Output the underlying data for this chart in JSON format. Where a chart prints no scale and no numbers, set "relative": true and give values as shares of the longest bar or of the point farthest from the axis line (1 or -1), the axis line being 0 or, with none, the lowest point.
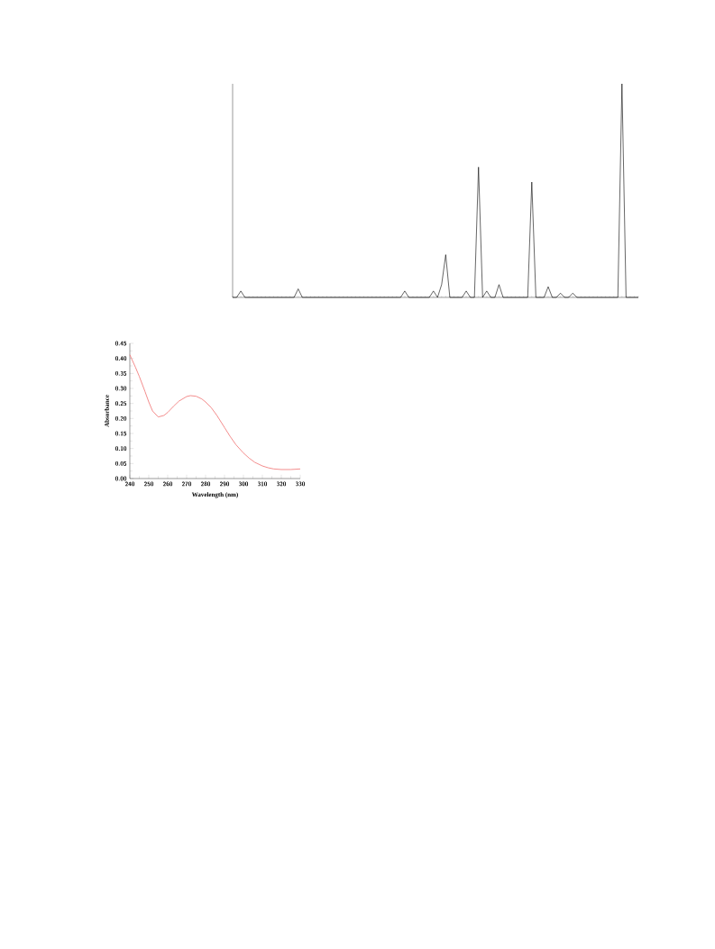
{
  "chart_data": [
    {
      "type": "line",
      "relative": true,
      "color": "#000000",
      "categories": [
        null,
        null,
        null,
        null,
        null,
        null,
        null,
        null,
        null,
        null,
        null,
        null,
        null,
        null,
        null,
        null,
        null,
        null,
        null,
        null,
        null,
        null,
        null,
        null,
        null,
        null,
        null,
        null,
        null,
        null,
        null,
        null,
        null,
        null,
        null,
        null,
        null,
        null,
        null,
        null,
        null,
        null,
        null,
        null,
        null,
        null,
        null,
        null,
        null,
        null,
        null,
        null,
        null,
        null,
        null,
        null,
        null,
        null,
        null,
        null,
        null,
        null,
        null,
        null,
        null,
        null,
        null,
        null,
        null,
        null,
        null,
        null,
        null,
        null,
        null,
        null,
        null,
        null,
        null,
        null,
        null,
        null,
        null,
        null,
        null,
        null,
        null,
        null,
        null,
        null,
        null,
        null,
        null,
        null,
        null,
        null,
        null,
        null,
        null,
        null
      ],
      "values": [
        0,
        0,
        0.03,
        0,
        0,
        0,
        0,
        0,
        0,
        0,
        0,
        0,
        0,
        0,
        0,
        0,
        0.04,
        0,
        0,
        0,
        0,
        0,
        0,
        0,
        0,
        0,
        0,
        0,
        0,
        0,
        0,
        0,
        0,
        0,
        0,
        0,
        0,
        0,
        0,
        0,
        0,
        0,
        0.03,
        0,
        0,
        0,
        0,
        0,
        0,
        0.03,
        0,
        0.06,
        0.2,
        0,
        0,
        0,
        0,
        0.03,
        0,
        0,
        0.61,
        0,
        0.03,
        0,
        0,
        0.06,
        0,
        0,
        0,
        0,
        0,
        0,
        0,
        0.54,
        0,
        0,
        0,
        0.05,
        0,
        0,
        0.02,
        0,
        0,
        0.02,
        0,
        0,
        0,
        0,
        0,
        0,
        0,
        0,
        0,
        0,
        0,
        1,
        0,
        0,
        0,
        0
      ]
    },
    {
      "type": "line",
      "xlabel": "Wavelength (nm)",
      "ylabel": "Absorbance",
      "color": "#f07070",
      "x": [
        240,
        243,
        245,
        248,
        250,
        252,
        255,
        258,
        260,
        263,
        266,
        270,
        272,
        275,
        278,
        280,
        283,
        286,
        290,
        293,
        296,
        300,
        303,
        306,
        310,
        313,
        316,
        320,
        325,
        330
      ],
      "values": [
        0.412,
        0.37,
        0.34,
        0.29,
        0.255,
        0.225,
        0.205,
        0.21,
        0.22,
        0.24,
        0.258,
        0.273,
        0.276,
        0.274,
        0.265,
        0.255,
        0.236,
        0.21,
        0.17,
        0.14,
        0.113,
        0.085,
        0.068,
        0.054,
        0.042,
        0.036,
        0.032,
        0.03,
        0.03,
        0.032
      ],
      "xlim": [
        240,
        330
      ],
      "ylim": [
        0,
        0.45
      ],
      "xticks": [
        240,
        250,
        260,
        270,
        280,
        290,
        300,
        310,
        320,
        330
      ],
      "yticks": [
        {
          "value": 0,
          "label": "0.00"
        },
        {
          "value": 0.05,
          "label": "0.05"
        },
        {
          "value": 0.1,
          "label": "0.10"
        },
        {
          "value": 0.15,
          "label": "0.15"
        },
        {
          "value": 0.2,
          "label": "0.20"
        },
        {
          "value": 0.25,
          "label": "0.25"
        },
        {
          "value": 0.3,
          "label": "0.30"
        },
        {
          "value": 0.35,
          "label": "0.35"
        },
        {
          "value": 0.4,
          "label": "0.40"
        },
        {
          "value": 0.45,
          "label": "0.45"
        }
      ]
    }
  ]
}
